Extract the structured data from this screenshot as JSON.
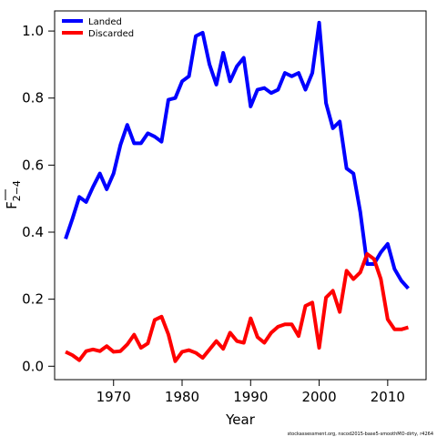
{
  "chart_data": {
    "type": "line",
    "xlabel": "Year",
    "ylabel": "F",
    "ylabel_sub": "2−4",
    "xlim": [
      1961.4,
      2015.6
    ],
    "ylim": [
      -0.04,
      1.06
    ],
    "xticks": [
      1970,
      1980,
      1990,
      2000,
      2010
    ],
    "yticks": [
      0.0,
      0.2,
      0.4,
      0.6,
      0.8,
      1.0
    ],
    "ytick_labels": [
      "0.0",
      "0.2",
      "0.4",
      "0.6",
      "0.8",
      "1.0"
    ],
    "grid": false,
    "legend_position": "top-left",
    "x": [
      1963,
      1964,
      1965,
      1966,
      1967,
      1968,
      1969,
      1970,
      1971,
      1972,
      1973,
      1974,
      1975,
      1976,
      1977,
      1978,
      1979,
      1980,
      1981,
      1982,
      1983,
      1984,
      1985,
      1986,
      1987,
      1988,
      1989,
      1990,
      1991,
      1992,
      1993,
      1994,
      1995,
      1996,
      1997,
      1998,
      1999,
      2000,
      2001,
      2002,
      2003,
      2004,
      2005,
      2006,
      2007,
      2008,
      2009,
      2010,
      2011,
      2012,
      2013
    ],
    "series": [
      {
        "name": "Landed",
        "color": "#0000ff",
        "values": [
          0.38,
          0.44,
          0.505,
          0.49,
          0.535,
          0.575,
          0.528,
          0.575,
          0.66,
          0.72,
          0.665,
          0.665,
          0.695,
          0.685,
          0.67,
          0.795,
          0.8,
          0.85,
          0.865,
          0.985,
          0.995,
          0.9,
          0.84,
          0.935,
          0.85,
          0.895,
          0.92,
          0.775,
          0.825,
          0.83,
          0.815,
          0.825,
          0.875,
          0.865,
          0.875,
          0.825,
          0.875,
          1.025,
          0.785,
          0.71,
          0.73,
          0.59,
          0.575,
          0.46,
          0.305,
          0.305,
          0.34,
          0.365,
          0.29,
          0.255,
          0.232
        ]
      },
      {
        "name": "Discarded",
        "color": "#ff0000",
        "values": [
          0.043,
          0.033,
          0.018,
          0.045,
          0.05,
          0.045,
          0.06,
          0.043,
          0.045,
          0.065,
          0.094,
          0.055,
          0.068,
          0.138,
          0.148,
          0.095,
          0.015,
          0.043,
          0.048,
          0.04,
          0.025,
          0.05,
          0.075,
          0.052,
          0.1,
          0.075,
          0.07,
          0.143,
          0.087,
          0.07,
          0.1,
          0.118,
          0.125,
          0.125,
          0.09,
          0.18,
          0.19,
          0.055,
          0.205,
          0.225,
          0.162,
          0.285,
          0.26,
          0.28,
          0.335,
          0.32,
          0.26,
          0.14,
          0.11,
          0.11,
          0.116
        ]
      }
    ]
  },
  "footer": "stockassessment.org, nscod2015-base5-smoothMO-dirty, r4264"
}
